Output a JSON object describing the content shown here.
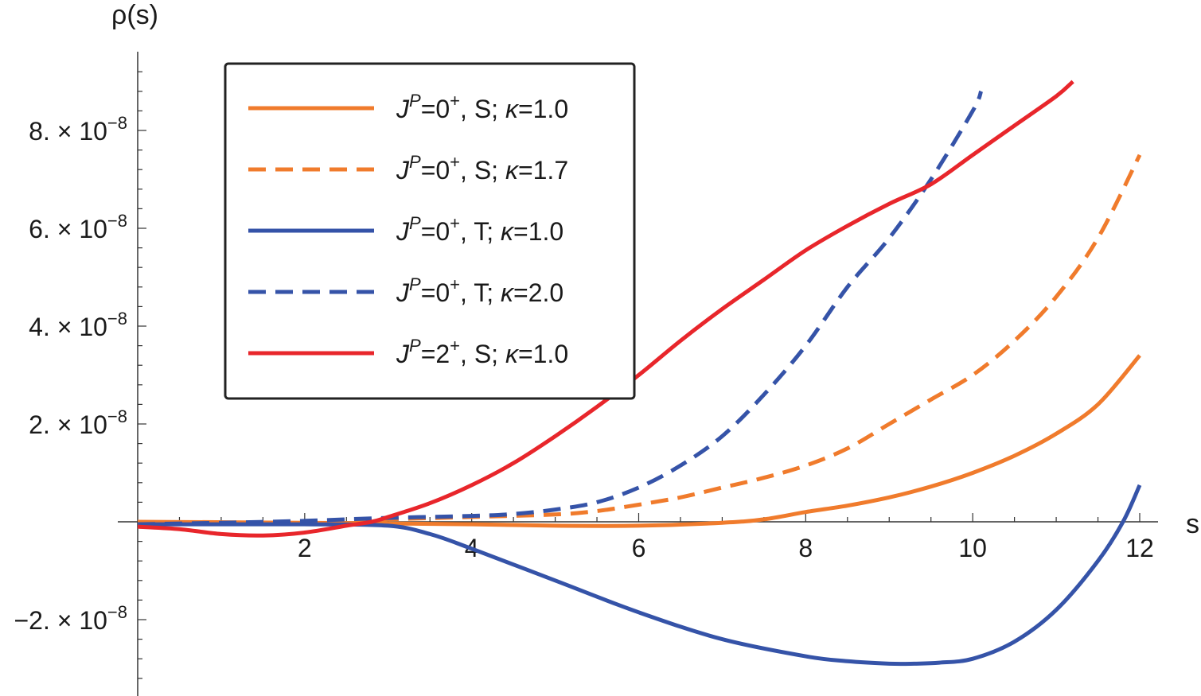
{
  "chart_data": {
    "type": "line",
    "title": "",
    "xlabel": "s",
    "ylabel_var": "ρ",
    "ylabel_arg": "(s)",
    "xlim": [
      0,
      12.2
    ],
    "ylim": [
      -3.5e-08,
      9.5e-08
    ],
    "grid": false,
    "legend_position": "top-left, framed",
    "x_ticks": [
      2,
      4,
      6,
      8,
      10,
      12
    ],
    "x_tick_labels": [
      "2",
      "4",
      "6",
      "8",
      "10",
      "12"
    ],
    "y_ticks": [
      -2e-08,
      2e-08,
      4e-08,
      6e-08,
      8e-08
    ],
    "y_tick_mantissas": [
      "−2.",
      "2.",
      "4.",
      "6.",
      "8."
    ],
    "y_tick_base": "10",
    "y_tick_exponent": "−8",
    "series": [
      {
        "name": "J^P=0^+, S; κ=1.0",
        "legend": {
          "j": "J",
          "p": "P",
          "eq": "=0",
          "parity": "+",
          "rest": ", S; ",
          "kappa": "κ",
          "kappa_val": "=1.0"
        },
        "color": "#f07b2c",
        "dash": "solid",
        "x": [
          0,
          2,
          4,
          5,
          6,
          7,
          7.5,
          8,
          8.5,
          9,
          9.5,
          10,
          10.5,
          11,
          11.5,
          12
        ],
        "y": [
          0,
          -2e-10,
          -5e-10,
          -8e-10,
          -8e-10,
          -2e-10,
          5e-10,
          2e-09,
          3.3e-09,
          5e-09,
          7.2e-09,
          1e-08,
          1.35e-08,
          1.8e-08,
          2.4e-08,
          3.4e-08
        ]
      },
      {
        "name": "J^P=0^+, S; κ=1.7",
        "legend": {
          "j": "J",
          "p": "P",
          "eq": "=0",
          "parity": "+",
          "rest": ", S; ",
          "kappa": "κ",
          "kappa_val": "=1.7"
        },
        "color": "#f07b2c",
        "dash": "dashed",
        "x": [
          0,
          1,
          2,
          3,
          4,
          5,
          5.5,
          6,
          6.5,
          7,
          7.5,
          8,
          8.5,
          9,
          9.5,
          10,
          10.5,
          11,
          11.5,
          12
        ],
        "y": [
          -2e-10,
          -2e-10,
          0,
          5e-10,
          1e-09,
          1.5e-09,
          2.2e-09,
          3.5e-09,
          5e-09,
          7e-09,
          9e-09,
          1.15e-08,
          1.5e-08,
          2e-08,
          2.5e-08,
          3e-08,
          3.7e-08,
          4.6e-08,
          5.8e-08,
          7.5e-08
        ]
      },
      {
        "name": "J^P=0^+, T; κ=1.0",
        "legend": {
          "j": "J",
          "p": "P",
          "eq": "=0",
          "parity": "+",
          "rest": ", T; ",
          "kappa": "κ",
          "kappa_val": "=1.0"
        },
        "color": "#3553a8",
        "dash": "solid",
        "x": [
          0,
          1,
          2,
          3,
          3.5,
          4,
          5,
          6,
          7,
          8,
          8.5,
          9,
          9.3,
          9.6,
          10,
          10.5,
          11,
          11.5,
          11.8,
          12
        ],
        "y": [
          -5e-10,
          -5e-10,
          -5e-10,
          -8e-10,
          -2.5e-09,
          -5.5e-09,
          -1.2e-08,
          -1.85e-08,
          -2.4e-08,
          -2.75e-08,
          -2.85e-08,
          -2.9e-08,
          -2.9e-08,
          -2.88e-08,
          -2.8e-08,
          -2.45e-08,
          -1.8e-08,
          -8e-09,
          0.0,
          7.5e-09
        ]
      },
      {
        "name": "J^P=0^+, T; κ=2.0",
        "legend": {
          "j": "J",
          "p": "P",
          "eq": "=0",
          "parity": "+",
          "rest": ", T; ",
          "kappa": "κ",
          "kappa_val": "=2.0"
        },
        "color": "#3553a8",
        "dash": "dashed",
        "x": [
          0,
          1,
          2,
          3,
          4,
          4.5,
          5,
          5.5,
          6,
          6.5,
          7,
          7.5,
          8,
          8.5,
          9,
          9.5,
          10,
          10.1
        ],
        "y": [
          -5e-10,
          -2e-10,
          2e-10,
          8e-10,
          1.2e-09,
          1.6e-09,
          2.5e-09,
          4e-09,
          7e-09,
          1.15e-08,
          1.75e-08,
          2.6e-08,
          3.6e-08,
          4.8e-08,
          5.8e-08,
          7e-08,
          8.4e-08,
          8.8e-08
        ]
      },
      {
        "name": "J^P=2^+, S; κ=1.0",
        "legend": {
          "j": "J",
          "p": "P",
          "eq": "=2",
          "parity": "+",
          "rest": ", S; ",
          "kappa": "κ",
          "kappa_val": "=1.0"
        },
        "color": "#e8262b",
        "dash": "solid",
        "x": [
          0,
          0.5,
          1,
          1.5,
          2,
          2.5,
          2.8,
          3,
          3.5,
          4,
          4.5,
          5,
          5.5,
          6,
          6.5,
          7,
          7.5,
          8,
          8.5,
          9,
          9.5,
          10,
          10.5,
          11,
          11.2
        ],
        "y": [
          -1e-09,
          -1.5e-09,
          -2.5e-09,
          -2.8e-09,
          -2.2e-09,
          -8e-10,
          0.0,
          1e-09,
          3.8e-09,
          7.5e-09,
          1.2e-08,
          1.75e-08,
          2.35e-08,
          3e-08,
          3.7e-08,
          4.35e-08,
          4.95e-08,
          5.55e-08,
          6.05e-08,
          6.5e-08,
          6.9e-08,
          7.5e-08,
          8.1e-08,
          8.7e-08,
          9e-08
        ]
      }
    ]
  }
}
